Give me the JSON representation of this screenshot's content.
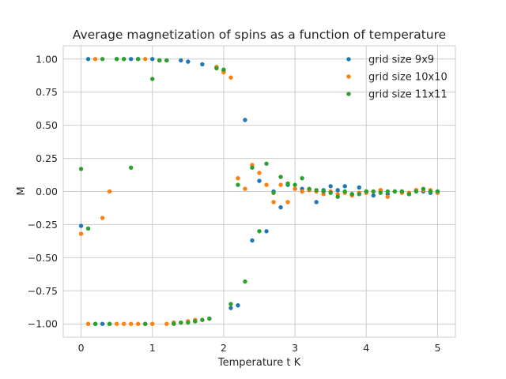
{
  "chart_data": {
    "type": "scatter",
    "title": "Average magnetization of spins as a function of temperature",
    "xlabel": "Temperature t K",
    "ylabel": "M",
    "xlim": [
      -0.25,
      5.25
    ],
    "ylim": [
      -1.1,
      1.1
    ],
    "xticks": [
      0,
      1,
      2,
      3,
      4,
      5
    ],
    "yticks": [
      -1.0,
      -0.75,
      -0.5,
      -0.25,
      0.0,
      0.25,
      0.5,
      0.75,
      1.0
    ],
    "xtick_labels": [
      "0",
      "1",
      "2",
      "3",
      "4",
      "5"
    ],
    "ytick_labels": [
      "−1.00",
      "−0.75",
      "−0.50",
      "−0.25",
      "0.00",
      "0.25",
      "0.50",
      "0.75",
      "1.00"
    ],
    "grid": true,
    "legend_position": "top-right",
    "series": [
      {
        "name": "grid size  9x9",
        "color": "#1f77b4",
        "points": [
          [
            0.0,
            -0.26
          ],
          [
            0.1,
            1.0
          ],
          [
            0.2,
            -1.0
          ],
          [
            0.3,
            -1.0
          ],
          [
            0.4,
            -1.0
          ],
          [
            0.5,
            1.0
          ],
          [
            0.6,
            1.0
          ],
          [
            0.7,
            1.0
          ],
          [
            0.8,
            1.0
          ],
          [
            0.9,
            -1.0
          ],
          [
            1.0,
            1.0
          ],
          [
            1.1,
            0.99
          ],
          [
            1.2,
            0.99
          ],
          [
            1.3,
            -0.99
          ],
          [
            1.4,
            0.99
          ],
          [
            1.5,
            0.98
          ],
          [
            1.6,
            -0.98
          ],
          [
            1.7,
            0.96
          ],
          [
            1.8,
            -0.96
          ],
          [
            1.9,
            0.94
          ],
          [
            2.0,
            0.91
          ],
          [
            2.1,
            -0.88
          ],
          [
            2.2,
            -0.86
          ],
          [
            2.3,
            0.54
          ],
          [
            2.4,
            -0.37
          ],
          [
            2.5,
            0.08
          ],
          [
            2.6,
            -0.3
          ],
          [
            2.7,
            0.0
          ],
          [
            2.8,
            -0.12
          ],
          [
            2.9,
            0.05
          ],
          [
            3.0,
            0.02
          ],
          [
            3.1,
            0.02
          ],
          [
            3.2,
            0.01
          ],
          [
            3.3,
            -0.08
          ],
          [
            3.4,
            0.01
          ],
          [
            3.5,
            0.04
          ],
          [
            3.6,
            0.01
          ],
          [
            3.7,
            0.04
          ],
          [
            3.8,
            -0.02
          ],
          [
            3.9,
            0.03
          ],
          [
            4.0,
            0.0
          ],
          [
            4.1,
            -0.03
          ],
          [
            4.2,
            0.01
          ],
          [
            4.3,
            -0.02
          ],
          [
            4.4,
            0.0
          ],
          [
            4.5,
            0.0
          ],
          [
            4.6,
            -0.02
          ],
          [
            4.7,
            0.01
          ],
          [
            4.8,
            0.0
          ],
          [
            4.9,
            -0.01
          ],
          [
            5.0,
            0.0
          ]
        ]
      },
      {
        "name": "grid size  10x10",
        "color": "#ff7f0e",
        "points": [
          [
            0.0,
            -0.32
          ],
          [
            0.1,
            -1.0
          ],
          [
            0.2,
            1.0
          ],
          [
            0.3,
            -0.2
          ],
          [
            0.4,
            0.0
          ],
          [
            0.5,
            -1.0
          ],
          [
            0.6,
            -1.0
          ],
          [
            0.7,
            -1.0
          ],
          [
            0.8,
            -1.0
          ],
          [
            0.9,
            1.0
          ],
          [
            1.0,
            -1.0
          ],
          [
            1.1,
            0.99
          ],
          [
            1.2,
            -1.0
          ],
          [
            1.3,
            -0.99
          ],
          [
            1.4,
            -0.99
          ],
          [
            1.5,
            -0.98
          ],
          [
            1.6,
            -0.97
          ],
          [
            1.7,
            -0.97
          ],
          [
            1.8,
            -0.96
          ],
          [
            1.9,
            0.94
          ],
          [
            2.0,
            0.9
          ],
          [
            2.1,
            0.86
          ],
          [
            2.2,
            0.1
          ],
          [
            2.3,
            0.02
          ],
          [
            2.4,
            0.2
          ],
          [
            2.5,
            0.14
          ],
          [
            2.6,
            0.05
          ],
          [
            2.7,
            -0.08
          ],
          [
            2.8,
            0.05
          ],
          [
            2.9,
            -0.08
          ],
          [
            3.0,
            0.02
          ],
          [
            3.1,
            0.0
          ],
          [
            3.2,
            0.01
          ],
          [
            3.3,
            0.0
          ],
          [
            3.4,
            -0.02
          ],
          [
            3.5,
            0.0
          ],
          [
            3.6,
            -0.02
          ],
          [
            3.7,
            -0.01
          ],
          [
            3.8,
            -0.03
          ],
          [
            3.9,
            -0.01
          ],
          [
            4.0,
            -0.01
          ],
          [
            4.1,
            0.0
          ],
          [
            4.2,
            0.01
          ],
          [
            4.3,
            -0.04
          ],
          [
            4.4,
            0.0
          ],
          [
            4.5,
            -0.01
          ],
          [
            4.6,
            -0.01
          ],
          [
            4.7,
            0.01
          ],
          [
            4.8,
            0.01
          ],
          [
            4.9,
            0.01
          ],
          [
            5.0,
            -0.01
          ]
        ]
      },
      {
        "name": "grid size  11x11",
        "color": "#2ca02c",
        "points": [
          [
            0.0,
            0.17
          ],
          [
            0.1,
            -0.28
          ],
          [
            0.2,
            -1.0
          ],
          [
            0.3,
            1.0
          ],
          [
            0.4,
            -1.0
          ],
          [
            0.5,
            1.0
          ],
          [
            0.6,
            1.0
          ],
          [
            0.7,
            0.18
          ],
          [
            0.8,
            1.0
          ],
          [
            0.9,
            -1.0
          ],
          [
            1.0,
            0.85
          ],
          [
            1.1,
            0.99
          ],
          [
            1.2,
            0.99
          ],
          [
            1.3,
            -1.0
          ],
          [
            1.4,
            -0.99
          ],
          [
            1.5,
            -0.99
          ],
          [
            1.6,
            -0.98
          ],
          [
            1.7,
            -0.97
          ],
          [
            1.8,
            -0.96
          ],
          [
            1.9,
            0.93
          ],
          [
            2.0,
            0.92
          ],
          [
            2.1,
            -0.85
          ],
          [
            2.2,
            0.05
          ],
          [
            2.3,
            -0.68
          ],
          [
            2.4,
            0.18
          ],
          [
            2.5,
            -0.3
          ],
          [
            2.6,
            0.21
          ],
          [
            2.7,
            -0.01
          ],
          [
            2.8,
            0.11
          ],
          [
            2.9,
            0.06
          ],
          [
            3.0,
            0.05
          ],
          [
            3.1,
            0.1
          ],
          [
            3.2,
            0.02
          ],
          [
            3.3,
            0.01
          ],
          [
            3.4,
            0.0
          ],
          [
            3.5,
            -0.01
          ],
          [
            3.6,
            -0.04
          ],
          [
            3.7,
            0.0
          ],
          [
            3.8,
            -0.02
          ],
          [
            3.9,
            -0.02
          ],
          [
            4.0,
            0.0
          ],
          [
            4.1,
            0.0
          ],
          [
            4.2,
            -0.01
          ],
          [
            4.3,
            0.0
          ],
          [
            4.4,
            0.0
          ],
          [
            4.5,
            0.0
          ],
          [
            4.6,
            -0.02
          ],
          [
            4.7,
            0.0
          ],
          [
            4.8,
            0.02
          ],
          [
            4.9,
            0.0
          ],
          [
            5.0,
            0.0
          ]
        ]
      }
    ]
  }
}
